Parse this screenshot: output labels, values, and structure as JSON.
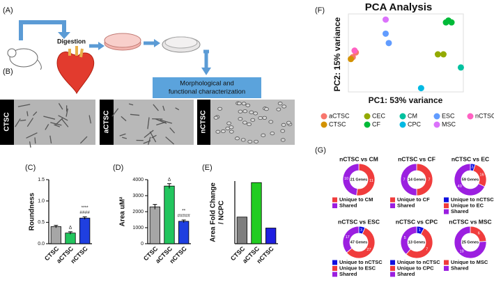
{
  "figure": {
    "panel_labels": [
      "(A)",
      "(B)",
      "(C)",
      "(D)",
      "(E)",
      "(F)",
      "(G)"
    ]
  },
  "panel_a": {
    "step": "Digestion",
    "box_lines": [
      "Morphological and",
      "functional characterization"
    ]
  },
  "panel_b": {
    "samples": [
      "CTSC",
      "aCTSC",
      "nCTSC"
    ]
  },
  "chart_data": [
    {
      "type": "bar",
      "ylabel": [
        "Roundness"
      ],
      "categories": [
        "CTSC",
        "aCTSC",
        "nCTSC"
      ],
      "values": [
        0.4,
        0.25,
        0.6
      ],
      "errors": [
        0.03,
        0.03,
        0.03
      ],
      "colors": [
        "#a6a6a6",
        "#22c55e",
        "#1f3fe0"
      ],
      "annotations": [
        null,
        [
          "Δ"
        ],
        [
          "****",
          "####"
        ]
      ],
      "ylim": [
        0,
        1.5
      ],
      "yticks": [
        {
          "value": 0,
          "label": "0.0"
        },
        {
          "value": 0.5,
          "label": "0.5"
        },
        {
          "value": 1,
          "label": "1.0"
        },
        {
          "value": 1.5,
          "label": "1.5"
        }
      ]
    },
    {
      "type": "bar",
      "ylabel": [
        "Area uM²"
      ],
      "categories": [
        "CTSC",
        "aCTSC",
        "nCTSC"
      ],
      "values": [
        2300,
        3600,
        1400
      ],
      "errors": [
        150,
        150,
        80
      ],
      "colors": [
        "#a6a6a6",
        "#22c55e",
        "#1f3fe0"
      ],
      "annotations": [
        null,
        [
          "Δ"
        ],
        [
          "**",
          "#####"
        ]
      ],
      "ylim": [
        0,
        4000
      ],
      "yticks": [
        0,
        1000,
        2000,
        3000,
        4000
      ]
    },
    {
      "type": "bar",
      "ylabel": [
        "Area Fold Change",
        "/ NCPC"
      ],
      "categories": [
        "CTSC",
        "aCTSC",
        "nCTSC"
      ],
      "values": [
        1.7,
        3.9,
        1.0
      ],
      "colors": [
        "#7f7f7f",
        "#22cc22",
        "#1f1fe0"
      ],
      "ylim": [
        0,
        4
      ]
    },
    {
      "type": "scatter",
      "title": "PCA Analysis",
      "xlabel": "PC1: 53% variance",
      "ylabel": "PC2: 15% variance",
      "xlim": [
        -90,
        95
      ],
      "ylim": [
        -45,
        38
      ],
      "series": [
        {
          "name": "aCTSC",
          "color": "#f8766d",
          "x": [
            -78,
            -83
          ],
          "y": [
            -3,
            -8
          ]
        },
        {
          "name": "CEC",
          "color": "#93aa00",
          "x": [
            54,
            63
          ],
          "y": [
            -5,
            -5
          ]
        },
        {
          "name": "CM",
          "color": "#00c19f",
          "x": [
            91
          ],
          "y": [
            -19
          ]
        },
        {
          "name": "ESC",
          "color": "#619cff",
          "x": [
            -30,
            -25
          ],
          "y": [
            17,
            7
          ]
        },
        {
          "name": "nCTSC",
          "color": "#ff61c3",
          "x": [
            -80
          ],
          "y": [
            -1
          ]
        },
        {
          "name": "CTSC",
          "color": "#d39200",
          "x": [
            -86
          ],
          "y": [
            -10
          ]
        },
        {
          "name": "CF",
          "color": "#00ba38",
          "x": [
            67,
            76,
            71
          ],
          "y": [
            29,
            29,
            31
          ]
        },
        {
          "name": "CPC",
          "color": "#00b9e3",
          "x": [
            27
          ],
          "y": [
            -41
          ]
        },
        {
          "name": "MSC",
          "color": "#db72fb",
          "x": [
            -30
          ],
          "y": [
            32
          ]
        }
      ]
    },
    {
      "type": "donut",
      "title": "nCTSC vs CM",
      "center_label": "21 Genes",
      "categories": [
        "Unique to CM",
        "Shared"
      ],
      "values": [
        11,
        10
      ],
      "colors": [
        "#f03c3c",
        "#9b1fe0"
      ]
    },
    {
      "type": "donut",
      "title": "nCTSC vs CF",
      "center_label": "14 Genes",
      "categories": [
        "Unique to CF",
        "Shared"
      ],
      "values": [
        7,
        7
      ],
      "colors": [
        "#f03c3c",
        "#9b1fe0"
      ]
    },
    {
      "type": "donut",
      "title": "nCTSC vs EC",
      "center_label": "59 Genes",
      "categories": [
        "Unique to nCTSC",
        "Unique to EC",
        "Shared"
      ],
      "values": [
        3,
        16,
        40
      ],
      "colors": [
        "#1010e0",
        "#f03c3c",
        "#9b1fe0"
      ]
    },
    {
      "type": "donut",
      "title": "nCTSC vs ESC",
      "center_label": "47 Genes",
      "categories": [
        "Unique to nCTSC",
        "Unique to ESC",
        "Shared"
      ],
      "values": [
        3,
        27,
        17
      ],
      "colors": [
        "#1010e0",
        "#f03c3c",
        "#9b1fe0"
      ]
    },
    {
      "type": "donut",
      "title": "nCTSC vs CPC",
      "center_label": "13 Genes",
      "categories": [
        "Unique to nCTSC",
        "Unique to CPC",
        "Shared"
      ],
      "values": [
        1,
        7,
        5
      ],
      "colors": [
        "#1010e0",
        "#f03c3c",
        "#9b1fe0"
      ]
    },
    {
      "type": "donut",
      "title": "nCTSC vs MSC",
      "center_label": "25 Genes",
      "categories": [
        "Unique to MSC",
        "Shared"
      ],
      "values": [
        6,
        19
      ],
      "colors": [
        "#f03c3c",
        "#9b1fe0"
      ]
    }
  ]
}
